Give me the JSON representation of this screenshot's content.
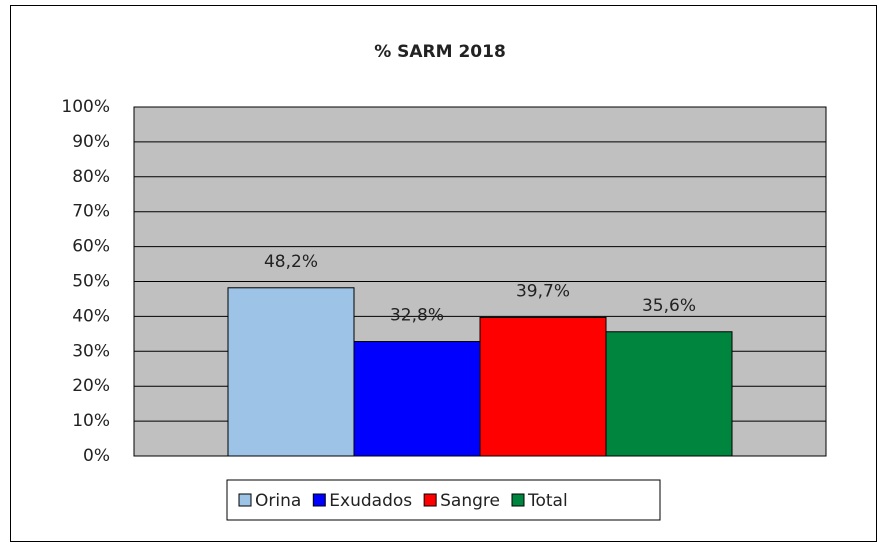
{
  "chart_data": {
    "type": "bar",
    "title": "% SARM 2018",
    "categories": [
      null
    ],
    "series": [
      {
        "name": "Orina",
        "color": "#9dc3e6",
        "values": [
          48.2
        ],
        "value_labels": [
          "48,2%"
        ]
      },
      {
        "name": "Exudados",
        "color": "#0000ff",
        "values": [
          32.8
        ],
        "value_labels": [
          "32,8%"
        ]
      },
      {
        "name": "Sangre",
        "color": "#ff0000",
        "values": [
          39.7
        ],
        "value_labels": [
          "39,7%"
        ]
      },
      {
        "name": "Total",
        "color": "#00853f",
        "values": [
          35.6
        ],
        "value_labels": [
          "35,6%"
        ]
      }
    ],
    "ylim": [
      0,
      100
    ],
    "yticks": [
      {
        "value": 0,
        "label": "0%"
      },
      {
        "value": 10,
        "label": "10%"
      },
      {
        "value": 20,
        "label": "20%"
      },
      {
        "value": 30,
        "label": "30%"
      },
      {
        "value": 40,
        "label": "40%"
      },
      {
        "value": 50,
        "label": "50%"
      },
      {
        "value": 60,
        "label": "60%"
      },
      {
        "value": 70,
        "label": "70%"
      },
      {
        "value": 80,
        "label": "80%"
      },
      {
        "value": 90,
        "label": "90%"
      },
      {
        "value": 100,
        "label": "100%"
      }
    ],
    "grid": true,
    "legend": "bottom",
    "plot_background": "#c0c0c0"
  }
}
